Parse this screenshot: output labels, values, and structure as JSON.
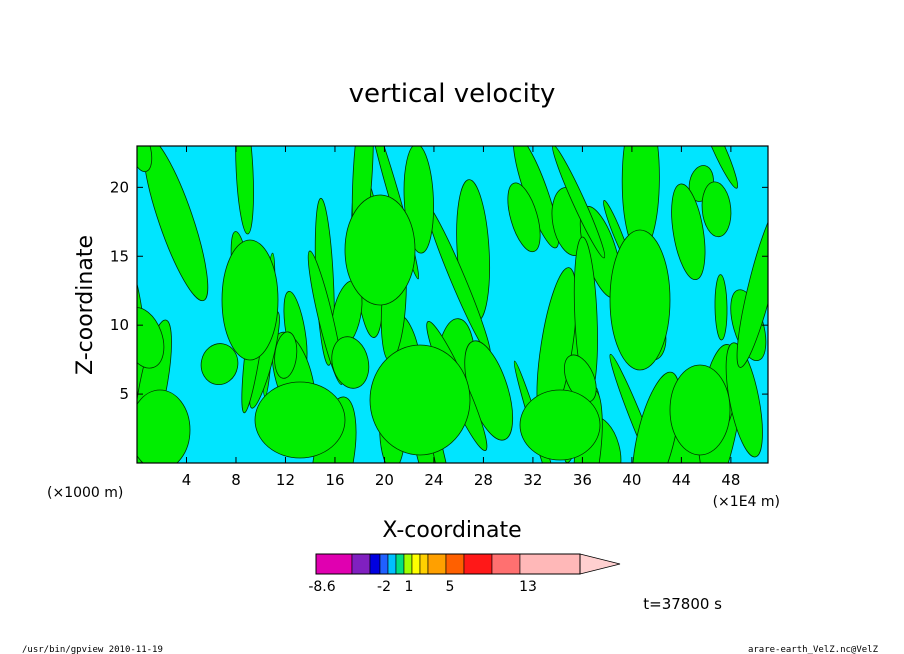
{
  "chart_data": {
    "type": "heatmap",
    "title": "vertical velocity",
    "xlabel": "X-coordinate",
    "ylabel": "Z-coordinate",
    "x_unit": "(×1000 m)",
    "x_scale_note": "(×1E4 m)",
    "xlim": [
      0,
      51
    ],
    "ylim": [
      0,
      23
    ],
    "x_ticks": [
      4,
      8,
      12,
      16,
      20,
      24,
      28,
      32,
      36,
      40,
      44,
      48
    ],
    "y_ticks": [
      5,
      10,
      15,
      20
    ],
    "fill_levels": [
      {
        "name": "negative",
        "color": "#00e5ff"
      },
      {
        "name": "positive",
        "color": "#00ee00"
      }
    ],
    "colorbar": {
      "colors": [
        "#e000b0",
        "#8020c0",
        "#0000e0",
        "#2060ff",
        "#00c0ff",
        "#00e080",
        "#a0ff00",
        "#ffff00",
        "#ffd000",
        "#ffa000",
        "#ff6000",
        "#ff1818",
        "#ff7070",
        "#ffb8b8",
        "#ffd0d0"
      ],
      "labels": [
        {
          "text": "-8.6",
          "value": -8.6
        },
        {
          "text": "-2",
          "value": -2
        },
        {
          "text": "1",
          "value": 1
        },
        {
          "text": "5",
          "value": 5
        },
        {
          "text": "13",
          "value": 13
        }
      ]
    },
    "time_label": "t=37800 s"
  },
  "footer": {
    "left": "/usr/bin/gpview  2010-11-19",
    "right": "arare-earth_VelZ.nc@VelZ"
  }
}
